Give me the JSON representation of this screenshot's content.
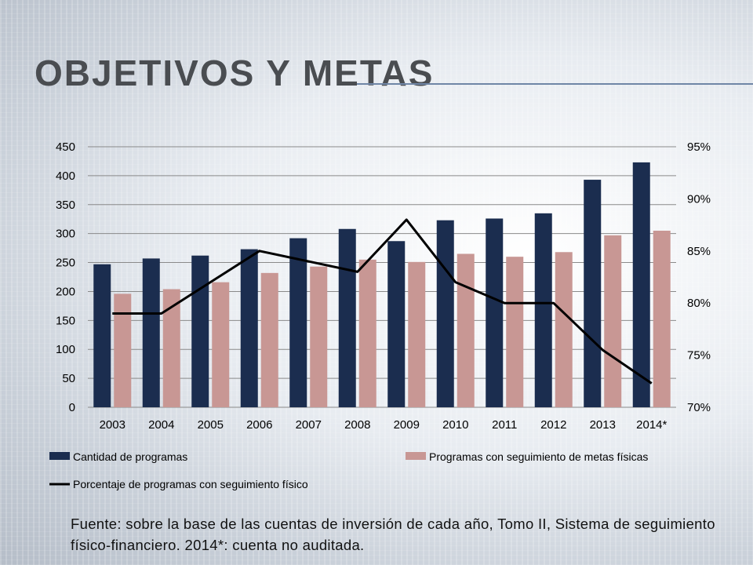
{
  "page": {
    "title": "Objetivos y metas",
    "source_note": "Fuente: sobre la base de las cuentas de inversión de cada año, Tomo II, Sistema de seguimiento físico-financiero. 2014*: cuenta no auditada."
  },
  "colors": {
    "bar_programs": "#1b2d4f",
    "bar_followup": "#c89794",
    "line": "#000000",
    "grid": "#8a8a8a"
  },
  "chart_data": {
    "type": "bar",
    "categories": [
      "2003",
      "2004",
      "2005",
      "2006",
      "2007",
      "2008",
      "2009",
      "2010",
      "2011",
      "2012",
      "2013",
      "2014*"
    ],
    "series": [
      {
        "name": "Cantidad de programas",
        "type": "bar",
        "axis": "left",
        "values": [
          247,
          257,
          262,
          273,
          292,
          308,
          287,
          323,
          326,
          335,
          393,
          423
        ]
      },
      {
        "name": "Programas con seguimiento de metas físicas",
        "type": "bar",
        "axis": "left",
        "values": [
          196,
          204,
          216,
          232,
          243,
          255,
          251,
          265,
          260,
          268,
          297,
          305
        ]
      },
      {
        "name": "Porcentaje de programas con seguimiento físico",
        "type": "line",
        "axis": "right",
        "values": [
          79,
          79,
          82,
          85,
          84,
          83,
          88,
          82,
          80,
          80,
          75.5,
          72.3
        ]
      }
    ],
    "y_left": {
      "min": 0,
      "max": 450,
      "step": 50,
      "tick_labels": [
        "0",
        "50",
        "100",
        "150",
        "200",
        "250",
        "300",
        "350",
        "400",
        "450"
      ]
    },
    "y_right": {
      "min": 70,
      "max": 95,
      "step": 5,
      "tick_labels": [
        "70%",
        "75%",
        "80%",
        "85%",
        "90%",
        "95%"
      ]
    },
    "grid": true,
    "legend_position": "bottom"
  }
}
